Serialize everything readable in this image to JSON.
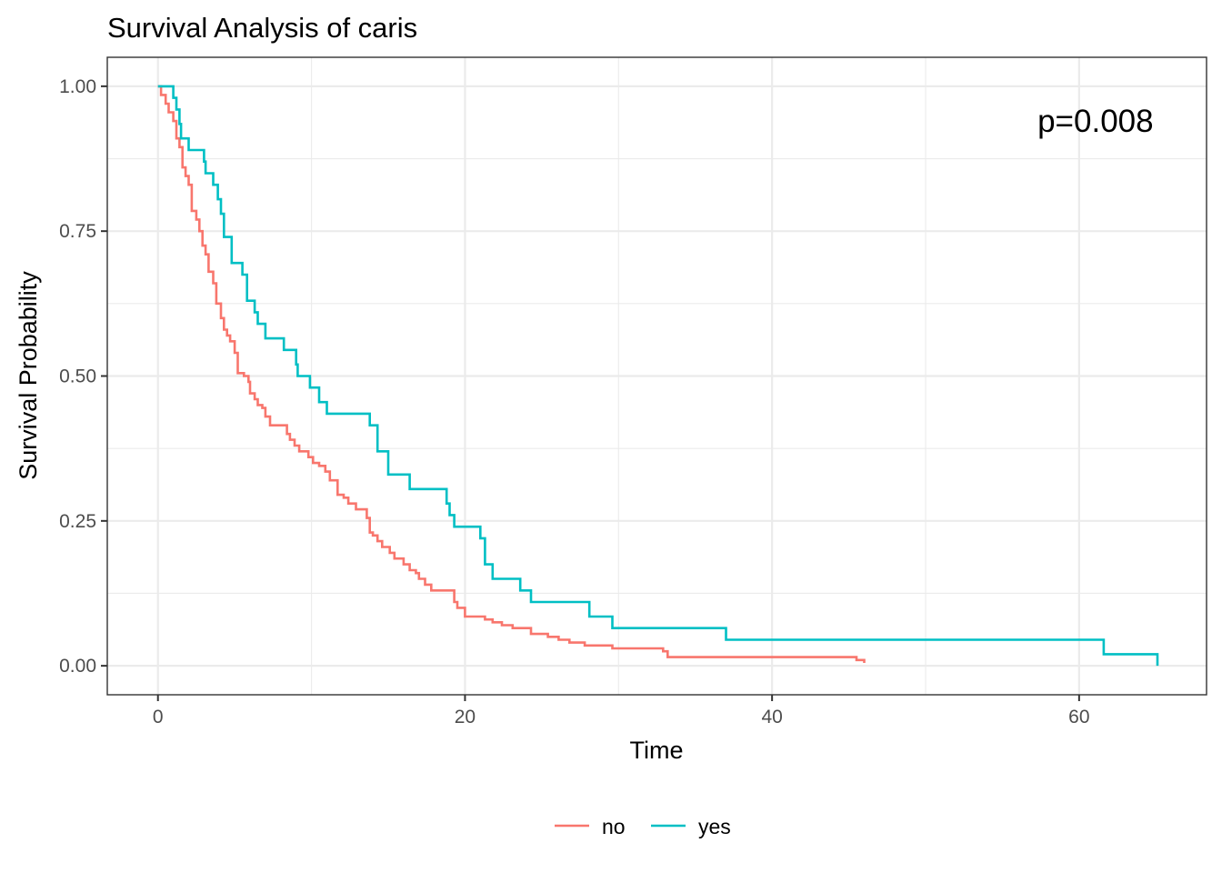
{
  "chart_data": {
    "type": "line",
    "step": true,
    "title": "Survival Analysis of caris",
    "xlabel": "Time",
    "ylabel": "Survival Probability",
    "xlim": [
      -3.3,
      68.3
    ],
    "ylim": [
      -0.05,
      1.05
    ],
    "x_ticks": [
      0,
      20,
      40,
      60
    ],
    "x_tick_labels": [
      "0",
      "20",
      "40",
      "60"
    ],
    "x_minor_ticks": [
      10,
      30,
      50
    ],
    "y_ticks": [
      0,
      0.25,
      0.5,
      0.75,
      1.0
    ],
    "y_tick_labels": [
      "0.00",
      "0.25",
      "0.50",
      "0.75",
      "1.00"
    ],
    "y_minor_ticks": [
      0.125,
      0.375,
      0.625,
      0.875
    ],
    "grid": true,
    "annotation": {
      "text": "p=0.008",
      "x": 60,
      "y": 0.94
    },
    "legend": {
      "position": "bottom"
    },
    "series": [
      {
        "name": "no",
        "color": "#F8766D",
        "points": [
          [
            0.0,
            1.0
          ],
          [
            0.2,
            0.985
          ],
          [
            0.5,
            0.97
          ],
          [
            0.7,
            0.955
          ],
          [
            1.0,
            0.94
          ],
          [
            1.2,
            0.91
          ],
          [
            1.4,
            0.895
          ],
          [
            1.6,
            0.86
          ],
          [
            1.8,
            0.845
          ],
          [
            2.0,
            0.83
          ],
          [
            2.2,
            0.785
          ],
          [
            2.5,
            0.77
          ],
          [
            2.7,
            0.75
          ],
          [
            2.9,
            0.725
          ],
          [
            3.1,
            0.71
          ],
          [
            3.3,
            0.68
          ],
          [
            3.6,
            0.66
          ],
          [
            3.8,
            0.625
          ],
          [
            4.1,
            0.6
          ],
          [
            4.3,
            0.58
          ],
          [
            4.5,
            0.57
          ],
          [
            4.7,
            0.56
          ],
          [
            5.0,
            0.54
          ],
          [
            5.2,
            0.505
          ],
          [
            5.6,
            0.5
          ],
          [
            5.9,
            0.49
          ],
          [
            6.0,
            0.47
          ],
          [
            6.3,
            0.46
          ],
          [
            6.5,
            0.45
          ],
          [
            6.8,
            0.445
          ],
          [
            7.0,
            0.43
          ],
          [
            7.3,
            0.415
          ],
          [
            8.4,
            0.4
          ],
          [
            8.6,
            0.39
          ],
          [
            8.9,
            0.38
          ],
          [
            9.2,
            0.37
          ],
          [
            9.8,
            0.36
          ],
          [
            10.1,
            0.35
          ],
          [
            10.5,
            0.345
          ],
          [
            10.9,
            0.335
          ],
          [
            11.2,
            0.32
          ],
          [
            11.7,
            0.295
          ],
          [
            12.1,
            0.29
          ],
          [
            12.4,
            0.28
          ],
          [
            12.9,
            0.27
          ],
          [
            13.6,
            0.255
          ],
          [
            13.8,
            0.23
          ],
          [
            14.0,
            0.225
          ],
          [
            14.3,
            0.215
          ],
          [
            14.6,
            0.205
          ],
          [
            15.1,
            0.195
          ],
          [
            15.4,
            0.185
          ],
          [
            16.0,
            0.175
          ],
          [
            16.4,
            0.165
          ],
          [
            16.8,
            0.16
          ],
          [
            17.0,
            0.15
          ],
          [
            17.4,
            0.14
          ],
          [
            17.8,
            0.13
          ],
          [
            19.3,
            0.11
          ],
          [
            19.5,
            0.1
          ],
          [
            20.0,
            0.085
          ],
          [
            21.3,
            0.08
          ],
          [
            21.8,
            0.075
          ],
          [
            22.4,
            0.07
          ],
          [
            23.1,
            0.065
          ],
          [
            24.3,
            0.055
          ],
          [
            25.4,
            0.05
          ],
          [
            26.1,
            0.045
          ],
          [
            26.8,
            0.04
          ],
          [
            27.8,
            0.035
          ],
          [
            29.6,
            0.03
          ],
          [
            32.9,
            0.025
          ],
          [
            33.2,
            0.015
          ],
          [
            45.5,
            0.01
          ],
          [
            46.0,
            0.005
          ]
        ]
      },
      {
        "name": "yes",
        "color": "#00BFC4",
        "points": [
          [
            0.0,
            1.0
          ],
          [
            1.0,
            0.98
          ],
          [
            1.2,
            0.96
          ],
          [
            1.4,
            0.935
          ],
          [
            1.5,
            0.91
          ],
          [
            2.0,
            0.89
          ],
          [
            3.0,
            0.87
          ],
          [
            3.1,
            0.85
          ],
          [
            3.6,
            0.83
          ],
          [
            3.9,
            0.805
          ],
          [
            4.1,
            0.78
          ],
          [
            4.3,
            0.74
          ],
          [
            4.8,
            0.695
          ],
          [
            5.5,
            0.675
          ],
          [
            5.8,
            0.63
          ],
          [
            6.3,
            0.61
          ],
          [
            6.5,
            0.59
          ],
          [
            7.0,
            0.565
          ],
          [
            8.2,
            0.545
          ],
          [
            9.0,
            0.52
          ],
          [
            9.1,
            0.5
          ],
          [
            9.9,
            0.48
          ],
          [
            10.5,
            0.455
          ],
          [
            11.0,
            0.435
          ],
          [
            13.8,
            0.415
          ],
          [
            14.3,
            0.37
          ],
          [
            15.0,
            0.33
          ],
          [
            16.4,
            0.305
          ],
          [
            18.8,
            0.28
          ],
          [
            19.0,
            0.26
          ],
          [
            19.3,
            0.24
          ],
          [
            21.0,
            0.22
          ],
          [
            21.3,
            0.175
          ],
          [
            21.8,
            0.15
          ],
          [
            23.6,
            0.13
          ],
          [
            24.3,
            0.11
          ],
          [
            28.1,
            0.085
          ],
          [
            29.6,
            0.065
          ],
          [
            37.0,
            0.045
          ],
          [
            61.6,
            0.02
          ],
          [
            65.1,
            0.0
          ]
        ]
      }
    ]
  }
}
